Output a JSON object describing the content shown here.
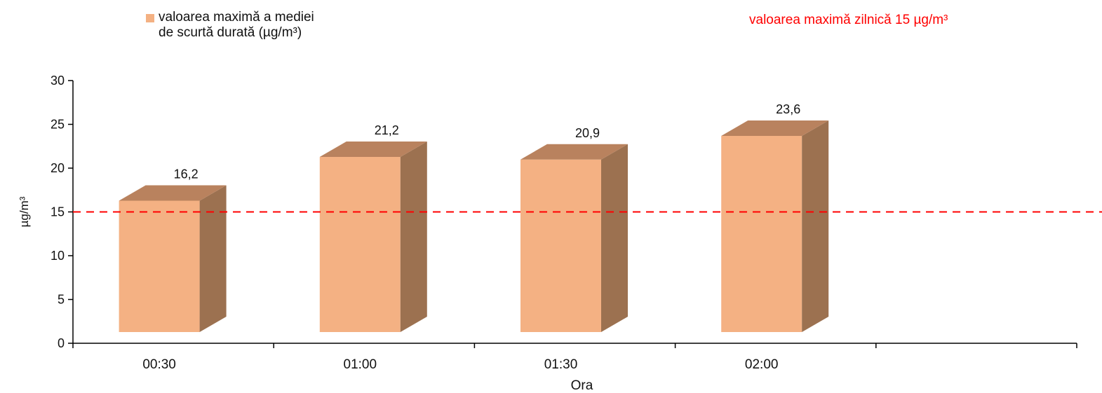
{
  "chart_data": {
    "type": "bar",
    "categories": [
      "00:30",
      "01:00",
      "01:30",
      "02:00"
    ],
    "series": [
      {
        "name": "valoarea maximă a mediei de scurtă durată (µg/m³)",
        "values": [
          16.2,
          21.2,
          20.9,
          23.6
        ],
        "labels": [
          "16,2",
          "21,2",
          "20,9",
          "23,6"
        ]
      }
    ],
    "reference_line": {
      "value": 15,
      "label": "valoarea maximă zilnică 15 µg/m³",
      "style": "dashed"
    },
    "xlabel": "Ora",
    "ylabel": "µg/m³",
    "ylim": [
      0,
      30
    ],
    "yticks": [
      0,
      5,
      10,
      15,
      20,
      25,
      30
    ],
    "grid": false,
    "legend_position": "top-left",
    "style": "3d"
  },
  "legend": {
    "line1": "valoarea maximă a mediei",
    "line2": "de scurtă durată (µg/m³)"
  },
  "colors": {
    "bar_front": "#f4b183",
    "bar_side": "#9c7150",
    "bar_top": "#b9825e",
    "reference": "#ff0000",
    "axis": "#000000"
  }
}
